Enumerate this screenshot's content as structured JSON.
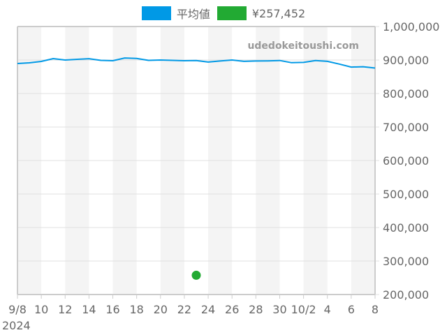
{
  "legend": {
    "items": [
      {
        "label": "平均値",
        "color": "#0099e6"
      },
      {
        "label": "¥257,452",
        "color": "#22aa33"
      }
    ]
  },
  "watermark": "udedokeitoushi.com",
  "chart_data": {
    "type": "line",
    "title": "",
    "xlabel": "",
    "ylabel": "",
    "ylim": [
      200000,
      1000000
    ],
    "y_ticks": [
      "1,000,000",
      "900,000",
      "800,000",
      "700,000",
      "600,000",
      "500,000",
      "400,000",
      "300,000",
      "200,000"
    ],
    "x_tick_labels": [
      "9/8",
      "10",
      "12",
      "14",
      "16",
      "18",
      "20",
      "22",
      "24",
      "26",
      "28",
      "30",
      "10/2",
      "4",
      "6",
      "8"
    ],
    "x_year_label": "2024",
    "grid": true,
    "legend_position": "top",
    "x": [
      "9/8",
      "9/9",
      "9/10",
      "9/11",
      "9/12",
      "9/13",
      "9/14",
      "9/15",
      "9/16",
      "9/17",
      "9/18",
      "9/19",
      "9/20",
      "9/21",
      "9/22",
      "9/23",
      "9/24",
      "9/25",
      "9/26",
      "9/27",
      "9/28",
      "9/29",
      "9/30",
      "10/1",
      "10/2",
      "10/3",
      "10/4",
      "10/5",
      "10/6",
      "10/7",
      "10/8"
    ],
    "series": [
      {
        "name": "平均値",
        "type": "line",
        "color": "#0099e6",
        "values": [
          889600,
          891700,
          895800,
          904200,
          900000,
          902000,
          904000,
          899000,
          898000,
          906000,
          904500,
          899000,
          900000,
          899000,
          898000,
          898500,
          894000,
          897000,
          900000,
          896000,
          897000,
          897500,
          898500,
          892000,
          893000,
          898500,
          896000,
          888000,
          879000,
          880000,
          876000
        ]
      },
      {
        "name": "¥257,452",
        "type": "scatter",
        "color": "#22aa33",
        "points": [
          {
            "x": "9/23",
            "y": 257452
          }
        ]
      }
    ]
  }
}
